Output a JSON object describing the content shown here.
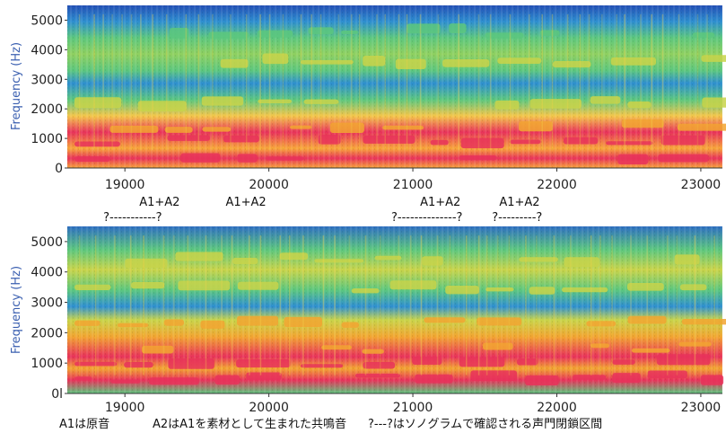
{
  "chart_data": [
    {
      "type": "heatmap",
      "ylabel": "Frequency (Hz)",
      "xticks": [
        19000,
        20000,
        21000,
        22000,
        23000
      ],
      "yticks": [
        0,
        1000,
        2000,
        3000,
        4000,
        5000
      ],
      "xlim": [
        18600,
        23150
      ],
      "ylim": [
        0,
        5500
      ],
      "energy_bands_hz": [
        {
          "center": 400,
          "level": "very high"
        },
        {
          "center": 900,
          "level": "very high"
        },
        {
          "center": 1400,
          "level": "high"
        },
        {
          "center": 2200,
          "level": "medium"
        },
        {
          "center": 3600,
          "level": "medium"
        },
        {
          "center": 4600,
          "level": "medium-low"
        }
      ],
      "annotations": [
        {
          "text": "A1+A2",
          "x": 19100
        },
        {
          "text": "A1+A2",
          "x": 19700
        },
        {
          "text": "A1+A2",
          "x": 21050
        },
        {
          "text": "A1+A2",
          "x": 21600
        }
      ],
      "closure_intervals": [
        {
          "text": "?-----------?",
          "x_start": 18850,
          "x_end": 19350
        },
        {
          "text": "?--------------?",
          "x_start": 20850,
          "x_end": 21350
        },
        {
          "text": "?---------?",
          "x_start": 21550,
          "x_end": 21900
        }
      ]
    },
    {
      "type": "heatmap",
      "ylabel": "Frequency (Hz)",
      "xticks": [
        19000,
        20000,
        21000,
        22000,
        23000
      ],
      "yticks": [
        0,
        1000,
        2000,
        3000,
        4000,
        5000
      ],
      "ytick_labels": [
        "0l",
        "1000",
        "2000",
        "3000",
        "4000",
        "5000"
      ],
      "xlim": [
        18600,
        23150
      ],
      "ylim": [
        0,
        5500
      ],
      "energy_bands_hz": [
        {
          "center": 500,
          "level": "very high"
        },
        {
          "center": 1000,
          "level": "very high"
        },
        {
          "center": 1500,
          "level": "high"
        },
        {
          "center": 2300,
          "level": "high"
        },
        {
          "center": 3500,
          "level": "medium"
        },
        {
          "center": 4400,
          "level": "medium"
        }
      ]
    }
  ],
  "footer": {
    "note_a1": "A1は原音",
    "note_a2": "A2はA1を素材として生まれた共鳴音",
    "note_q": "?---?はソノグラムで確認される声門閉鎖区間"
  },
  "colors": {
    "background": "#2350b5",
    "low": "#2e8fd0",
    "mid": "#5cc77e",
    "midhigh": "#c8d44a",
    "high": "#f2a531",
    "peak": "#e8325a"
  }
}
